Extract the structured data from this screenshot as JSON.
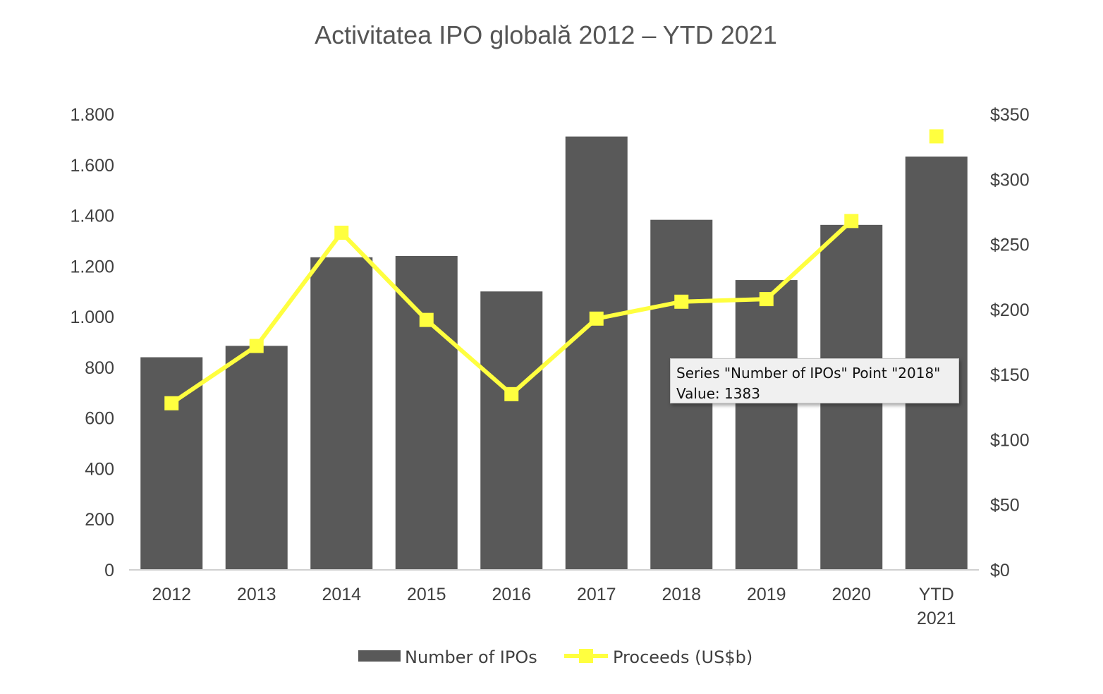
{
  "chart_data": {
    "type": "bar",
    "title": "Activitatea IPO globală 2012 – YTD 2021",
    "categories": [
      "2012",
      "2013",
      "2014",
      "2015",
      "2016",
      "2017",
      "2018",
      "2019",
      "2020",
      "YTD 2021"
    ],
    "category_lines": [
      [
        "2012"
      ],
      [
        "2013"
      ],
      [
        "2014"
      ],
      [
        "2015"
      ],
      [
        "2016"
      ],
      [
        "2017"
      ],
      [
        "2018"
      ],
      [
        "2019"
      ],
      [
        "2020"
      ],
      [
        "YTD",
        "2021"
      ]
    ],
    "series": [
      {
        "name": "Number of IPOs",
        "type": "bar",
        "axis": "left",
        "color": "#595959",
        "values": [
          840,
          885,
          1235,
          1240,
          1100,
          1712,
          1383,
          1145,
          1363,
          1633
        ]
      },
      {
        "name": "Proceeds (US$b)",
        "type": "line",
        "axis": "right",
        "color": "#ffff3f",
        "marker": "square",
        "values": [
          128,
          172,
          259,
          192,
          135,
          193,
          206,
          208,
          268,
          333
        ],
        "note_last_point_not_connected": true
      }
    ],
    "y_left": {
      "ylim": [
        0,
        1800
      ],
      "ticks": [
        0,
        200,
        400,
        600,
        800,
        1000,
        1200,
        1400,
        1600,
        1800
      ],
      "tick_labels": [
        "0",
        "200",
        "400",
        "600",
        "800",
        "1.000",
        "1.200",
        "1.400",
        "1.600",
        "1.800"
      ]
    },
    "y_right": {
      "ylim": [
        0,
        350
      ],
      "ticks": [
        0,
        50,
        100,
        150,
        200,
        250,
        300,
        350
      ],
      "tick_labels": [
        "$0",
        "$50",
        "$100",
        "$150",
        "$200",
        "$250",
        "$300",
        "$350"
      ]
    },
    "grid": false,
    "legend_position": "bottom"
  },
  "tooltip": {
    "line1": "Series \"Number of IPOs\" Point \"2018\"",
    "line2": "Value: 1383"
  }
}
